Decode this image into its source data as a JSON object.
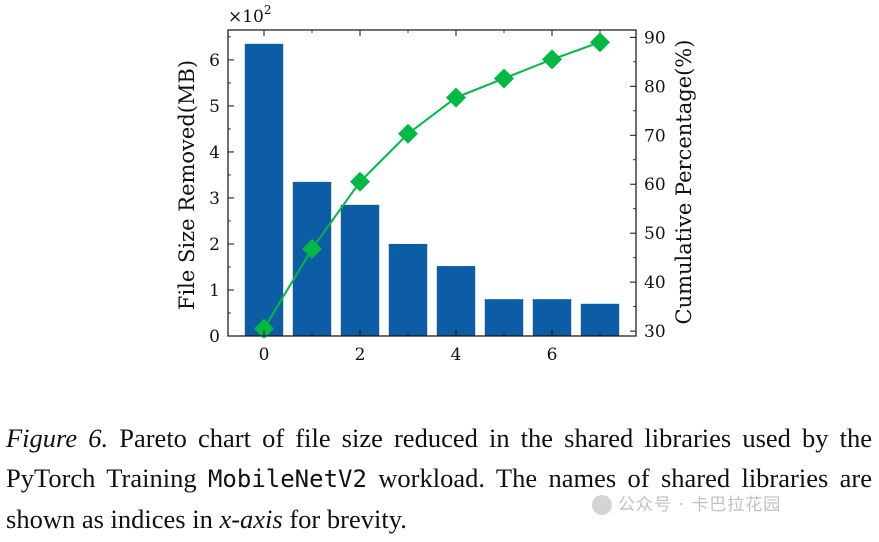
{
  "chart_data": {
    "type": "bar",
    "multiplier_label": "×10",
    "multiplier_exp": "2",
    "x": [
      0,
      1,
      2,
      3,
      4,
      5,
      6,
      7
    ],
    "x_ticks": [
      0,
      2,
      4,
      6
    ],
    "xlim": [
      -0.75,
      7.75
    ],
    "left_axis": {
      "label": "File Size Removed(MB)",
      "ylim": [
        0,
        6.65
      ],
      "ticks": [
        0,
        1,
        2,
        3,
        4,
        5,
        6
      ]
    },
    "right_axis": {
      "label": "Cumulative Percentage(%)",
      "ylim": [
        29,
        91.5
      ],
      "ticks": [
        30,
        40,
        50,
        60,
        70,
        80,
        90
      ]
    },
    "series": [
      {
        "type": "bar",
        "axis": "left",
        "values": [
          6.35,
          3.35,
          2.85,
          2.0,
          1.52,
          0.8,
          0.8,
          0.7
        ],
        "color": "#0c5da5"
      },
      {
        "type": "line",
        "axis": "right",
        "values": [
          30.5,
          46.8,
          60.5,
          70.3,
          77.7,
          81.6,
          85.5,
          89.0
        ],
        "color": "#00b945",
        "marker": "diamond"
      }
    ]
  },
  "caption": {
    "figure_label": "Figure 6.",
    "text_1": " Pareto chart of file size reduced in the shared libraries used by the PyTorch Training ",
    "code": "MobileNetV2",
    "text_2": " workload. The names of shared libraries are shown as indices in ",
    "axis_term": "x-axis",
    "text_3": " for brevity."
  },
  "watermark": {
    "text": "公众号 · 卡巴拉花园"
  }
}
